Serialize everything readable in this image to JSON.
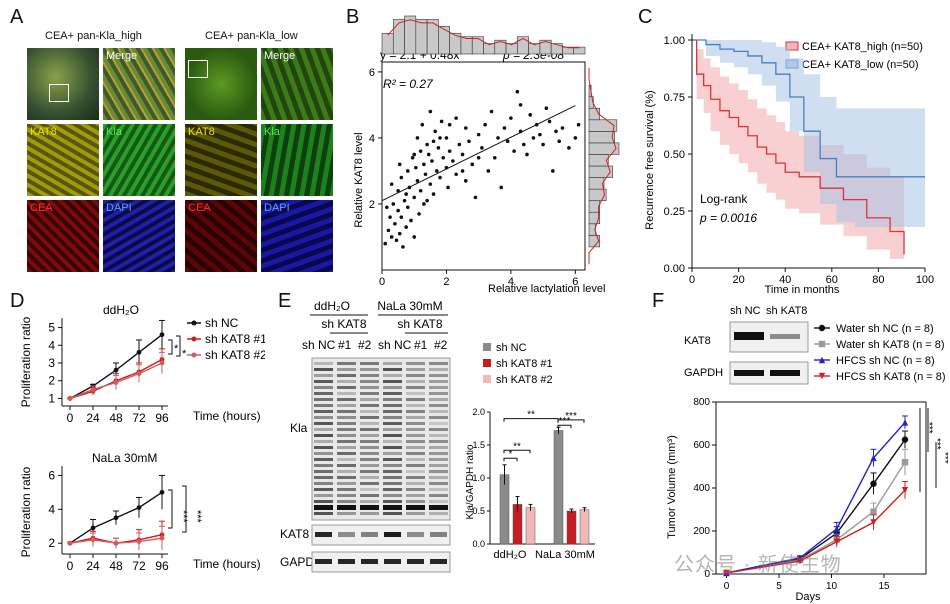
{
  "panels": {
    "A": {
      "letter": "A",
      "left_title": "CEA+ pan-Kla_high",
      "right_title": "CEA+ pan-Kla_low",
      "tiles": [
        "Merge",
        "KAT8",
        "Kla",
        "CEA",
        "DAPI"
      ],
      "colors": {
        "kat8": "#d8d000",
        "kla": "#2fbf2f",
        "cea": "#d01818",
        "dapi": "#3030e0"
      }
    },
    "B": {
      "letter": "B",
      "equation": "y = 2.1 + 0.48x",
      "pvalue": "p = 2.3e-08",
      "r2": "R² = 0.27",
      "xlabel": "Relative lactylation level",
      "ylabel": "Relative KAT8 level"
    },
    "C": {
      "letter": "C",
      "xlabel": "Time in months",
      "ylabel": "Recurrence free survival (%)",
      "test": "Log-rank",
      "pvalue": "p = 0.0016",
      "legend": [
        "CEA+ KAT8_high (n=50)",
        "CEA+ KAT8_low (n=50)"
      ]
    },
    "D": {
      "letter": "D",
      "top_title": "ddH₂O",
      "bottom_title": "NaLa 30mM",
      "xlabel": "Time (hours)",
      "ylabel": "Proliferation ratio",
      "legend": [
        "sh NC",
        "sh KAT8 #1",
        "sh KAT8 #2"
      ],
      "sig_top": [
        "*",
        "*"
      ],
      "sig_bottom": [
        "***",
        "***"
      ]
    },
    "E": {
      "letter": "E",
      "cond1": "ddH₂O",
      "cond2": "NaLa 30mM",
      "sh_kat8": "sh KAT8",
      "lanes": [
        "sh NC",
        "#1",
        "#2",
        "sh NC",
        "#1",
        "#2"
      ],
      "blots": [
        "Kla",
        "KAT8",
        "GAPDH"
      ],
      "legend": [
        "sh NC",
        "sh KAT8 #1",
        "sh KAT8 #2"
      ],
      "bar_ylabel": "Kla/GAPDH ratio",
      "bar_xlabels": [
        "ddH₂O",
        "NaLa 30mM"
      ],
      "sigs": [
        "*",
        "**",
        "**",
        "***",
        "***"
      ]
    },
    "F": {
      "letter": "F",
      "blot_lanes": [
        "sh NC",
        "sh KAT8"
      ],
      "blots": [
        "KAT8",
        "GAPDH"
      ],
      "legend": [
        "Water sh NC (n = 8)",
        "Water sh KAT8 (n = 8)",
        "HFCS sh NC (n = 8)",
        "HFCS sh KAT8 (n = 8)"
      ],
      "xlabel": "Days",
      "ylabel": "Tumor Volume (mm³)",
      "sigs": [
        "***",
        "***",
        "***"
      ]
    },
    "watermark": "公众号 · 新使生物"
  },
  "chart_data": [
    {
      "type": "scatter",
      "id": "B",
      "xlim": [
        0,
        6.3
      ],
      "ylim": [
        0,
        6.3
      ],
      "xticks": [
        0,
        2,
        4,
        6
      ],
      "yticks": [
        2,
        4,
        6
      ],
      "fit": {
        "intercept": 2.1,
        "slope": 0.48
      },
      "points": [
        [
          0.1,
          0.8
        ],
        [
          0.2,
          1.2
        ],
        [
          0.25,
          1.6
        ],
        [
          0.3,
          1.0
        ],
        [
          0.35,
          2.0
        ],
        [
          0.4,
          1.4
        ],
        [
          0.45,
          0.9
        ],
        [
          0.5,
          1.8
        ],
        [
          0.5,
          2.4
        ],
        [
          0.55,
          1.1
        ],
        [
          0.6,
          1.6
        ],
        [
          0.6,
          2.8
        ],
        [
          0.65,
          0.7
        ],
        [
          0.7,
          2.1
        ],
        [
          0.75,
          1.3
        ],
        [
          0.8,
          3.0
        ],
        [
          0.8,
          1.9
        ],
        [
          0.85,
          2.5
        ],
        [
          0.9,
          1.5
        ],
        [
          0.95,
          3.4
        ],
        [
          1.0,
          2.2
        ],
        [
          1.0,
          1.0
        ],
        [
          1.05,
          3.1
        ],
        [
          1.1,
          2.7
        ],
        [
          1.1,
          4.0
        ],
        [
          1.15,
          1.7
        ],
        [
          1.2,
          3.6
        ],
        [
          1.2,
          2.4
        ],
        [
          1.25,
          4.4
        ],
        [
          1.3,
          3.2
        ],
        [
          1.3,
          2.0
        ],
        [
          1.35,
          2.9
        ],
        [
          1.4,
          3.8
        ],
        [
          1.45,
          3.5
        ],
        [
          1.5,
          2.6
        ],
        [
          1.5,
          4.8
        ],
        [
          1.55,
          3.3
        ],
        [
          1.6,
          3.9
        ],
        [
          1.6,
          2.3
        ],
        [
          1.65,
          4.2
        ],
        [
          1.7,
          3.0
        ],
        [
          1.75,
          3.7
        ],
        [
          1.8,
          2.8
        ],
        [
          1.85,
          4.5
        ],
        [
          1.9,
          3.4
        ],
        [
          2.0,
          3.1
        ],
        [
          2.0,
          4.0
        ],
        [
          2.05,
          2.5
        ],
        [
          2.1,
          3.6
        ],
        [
          2.2,
          3.3
        ],
        [
          2.3,
          4.6
        ],
        [
          2.3,
          2.9
        ],
        [
          2.4,
          3.8
        ],
        [
          2.5,
          3.5
        ],
        [
          2.6,
          2.7
        ],
        [
          2.6,
          4.3
        ],
        [
          2.7,
          3.9
        ],
        [
          2.8,
          3.2
        ],
        [
          2.9,
          2.2
        ],
        [
          3.0,
          4.1
        ],
        [
          3.1,
          3.7
        ],
        [
          3.2,
          4.4
        ],
        [
          3.3,
          3.0
        ],
        [
          3.4,
          4.8
        ],
        [
          3.5,
          3.4
        ],
        [
          3.6,
          4.0
        ],
        [
          3.7,
          2.5
        ],
        [
          3.8,
          4.3
        ],
        [
          3.9,
          3.9
        ],
        [
          4.0,
          4.6
        ],
        [
          4.1,
          3.6
        ],
        [
          4.2,
          5.4
        ],
        [
          4.3,
          4.2
        ],
        [
          4.3,
          5.0
        ],
        [
          4.4,
          3.8
        ],
        [
          4.5,
          3.5
        ],
        [
          4.6,
          4.7
        ],
        [
          4.7,
          4.0
        ],
        [
          4.8,
          4.4
        ],
        [
          4.9,
          4.1
        ],
        [
          5.0,
          3.8
        ],
        [
          5.1,
          4.9
        ],
        [
          5.2,
          4.5
        ],
        [
          5.3,
          3.0
        ],
        [
          5.4,
          4.2
        ],
        [
          5.5,
          3.9
        ],
        [
          5.6,
          4.3
        ],
        [
          5.8,
          3.7
        ],
        [
          6.0,
          4.0
        ],
        [
          6.1,
          4.4
        ],
        [
          0.15,
          1.9
        ],
        [
          0.3,
          2.6
        ],
        [
          0.55,
          3.2
        ],
        [
          0.75,
          2.3
        ],
        [
          1.0,
          3.5
        ],
        [
          1.4,
          2.1
        ],
        [
          1.8,
          4.0
        ],
        [
          2.1,
          4.4
        ],
        [
          2.5,
          3.0
        ],
        [
          3.0,
          3.4
        ]
      ]
    },
    {
      "type": "line",
      "id": "C",
      "xlim": [
        0,
        100
      ],
      "ylim": [
        0,
        1.0
      ],
      "xticks": [
        0,
        20,
        40,
        60,
        80,
        100
      ],
      "yticks": [
        0.0,
        0.25,
        0.5,
        0.75,
        1.0
      ],
      "series": [
        {
          "name": "CEA+ KAT8_high (n=50)",
          "color": "#d9323a",
          "steps": [
            [
              0,
              1.0
            ],
            [
              2,
              0.85
            ],
            [
              5,
              0.8
            ],
            [
              8,
              0.74
            ],
            [
              12,
              0.69
            ],
            [
              16,
              0.66
            ],
            [
              20,
              0.62
            ],
            [
              24,
              0.58
            ],
            [
              28,
              0.53
            ],
            [
              32,
              0.5
            ],
            [
              36,
              0.46
            ],
            [
              40,
              0.42
            ],
            [
              46,
              0.4
            ],
            [
              55,
              0.35
            ],
            [
              65,
              0.3
            ],
            [
              75,
              0.22
            ],
            [
              85,
              0.16
            ],
            [
              91,
              0.06
            ]
          ],
          "upper": [
            [
              0,
              1.0
            ],
            [
              2,
              0.96
            ],
            [
              5,
              0.92
            ],
            [
              8,
              0.88
            ],
            [
              12,
              0.84
            ],
            [
              16,
              0.81
            ],
            [
              20,
              0.78
            ],
            [
              24,
              0.74
            ],
            [
              28,
              0.7
            ],
            [
              32,
              0.67
            ],
            [
              36,
              0.64
            ],
            [
              40,
              0.6
            ],
            [
              46,
              0.58
            ],
            [
              55,
              0.54
            ],
            [
              65,
              0.5
            ],
            [
              75,
              0.44
            ],
            [
              85,
              0.4
            ],
            [
              91,
              0.36
            ]
          ],
          "lower": [
            [
              0,
              1.0
            ],
            [
              2,
              0.74
            ],
            [
              5,
              0.68
            ],
            [
              8,
              0.6
            ],
            [
              12,
              0.54
            ],
            [
              16,
              0.5
            ],
            [
              20,
              0.46
            ],
            [
              24,
              0.42
            ],
            [
              28,
              0.37
            ],
            [
              32,
              0.33
            ],
            [
              36,
              0.3
            ],
            [
              40,
              0.26
            ],
            [
              46,
              0.24
            ],
            [
              55,
              0.19
            ],
            [
              65,
              0.14
            ],
            [
              75,
              0.08
            ],
            [
              85,
              0.04
            ],
            [
              91,
              0.01
            ]
          ]
        },
        {
          "name": "CEA+ KAT8_low (n=50)",
          "color": "#4a7fc4",
          "steps": [
            [
              0,
              1.0
            ],
            [
              6,
              0.98
            ],
            [
              12,
              0.96
            ],
            [
              18,
              0.95
            ],
            [
              24,
              0.93
            ],
            [
              30,
              0.9
            ],
            [
              36,
              0.85
            ],
            [
              42,
              0.75
            ],
            [
              48,
              0.6
            ],
            [
              55,
              0.48
            ],
            [
              62,
              0.4
            ],
            [
              70,
              0.4
            ],
            [
              80,
              0.4
            ],
            [
              100,
              0.4
            ]
          ],
          "upper": [
            [
              0,
              1.0
            ],
            [
              6,
              1.0
            ],
            [
              12,
              1.0
            ],
            [
              18,
              1.0
            ],
            [
              24,
              1.0
            ],
            [
              30,
              0.99
            ],
            [
              36,
              0.97
            ],
            [
              42,
              0.92
            ],
            [
              48,
              0.85
            ],
            [
              55,
              0.75
            ],
            [
              62,
              0.7
            ],
            [
              70,
              0.7
            ],
            [
              80,
              0.7
            ],
            [
              100,
              0.7
            ]
          ],
          "lower": [
            [
              0,
              1.0
            ],
            [
              6,
              0.93
            ],
            [
              12,
              0.9
            ],
            [
              18,
              0.88
            ],
            [
              24,
              0.85
            ],
            [
              30,
              0.8
            ],
            [
              36,
              0.73
            ],
            [
              42,
              0.6
            ],
            [
              48,
              0.42
            ],
            [
              55,
              0.28
            ],
            [
              62,
              0.2
            ],
            [
              70,
              0.18
            ],
            [
              80,
              0.18
            ],
            [
              100,
              0.18
            ]
          ]
        }
      ]
    },
    {
      "type": "line",
      "id": "D-top",
      "x": [
        0,
        24,
        48,
        72,
        96
      ],
      "ylim": [
        0.8,
        5.2
      ],
      "yticks": [
        1,
        2,
        3,
        4,
        5
      ],
      "series": [
        {
          "name": "sh NC",
          "color": "#111111",
          "values": [
            1.0,
            1.7,
            2.6,
            3.6,
            4.6
          ],
          "err": [
            0.05,
            0.1,
            0.4,
            0.7,
            0.8
          ]
        },
        {
          "name": "sh KAT8 #1",
          "color": "#c41e22",
          "values": [
            1.0,
            1.4,
            2.0,
            2.5,
            3.2
          ],
          "err": [
            0.05,
            0.2,
            0.4,
            0.5,
            0.6
          ]
        },
        {
          "name": "sh KAT8 #2",
          "color": "#d65a5a",
          "values": [
            1.0,
            1.5,
            1.9,
            2.4,
            3.0
          ],
          "err": [
            0.05,
            0.2,
            0.4,
            0.5,
            0.6
          ]
        }
      ]
    },
    {
      "type": "line",
      "id": "D-bottom",
      "x": [
        0,
        24,
        48,
        72,
        96
      ],
      "ylim": [
        1.6,
        6.2
      ],
      "yticks": [
        2,
        4,
        6
      ],
      "series": [
        {
          "name": "sh NC",
          "color": "#111111",
          "values": [
            2.0,
            2.9,
            3.5,
            4.1,
            5.0
          ],
          "err": [
            0.05,
            0.5,
            0.4,
            0.6,
            1.0
          ]
        },
        {
          "name": "sh KAT8 #1",
          "color": "#c41e22",
          "values": [
            2.0,
            2.3,
            2.0,
            2.2,
            2.5
          ],
          "err": [
            0.05,
            0.4,
            0.3,
            0.6,
            0.8
          ]
        },
        {
          "name": "sh KAT8 #2",
          "color": "#d65a5a",
          "values": [
            2.0,
            2.2,
            2.0,
            2.1,
            2.3
          ],
          "err": [
            0.05,
            0.4,
            0.3,
            0.5,
            0.7
          ]
        }
      ]
    },
    {
      "type": "bar",
      "id": "E-bar",
      "categories": [
        "ddH₂O",
        "NaLa 30mM"
      ],
      "ylim": [
        0,
        2.0
      ],
      "series": [
        {
          "name": "sh NC",
          "color": "#8a8a8a",
          "values": [
            1.05,
            1.72
          ],
          "err": [
            0.15,
            0.05
          ]
        },
        {
          "name": "sh KAT8 #1",
          "color": "#c41e22",
          "values": [
            0.6,
            0.5
          ],
          "err": [
            0.12,
            0.03
          ]
        },
        {
          "name": "sh KAT8 #2",
          "color": "#f2b8b8",
          "values": [
            0.55,
            0.52
          ],
          "err": [
            0.05,
            0.03
          ]
        }
      ]
    },
    {
      "type": "line",
      "id": "F",
      "x": [
        0,
        7,
        10.5,
        14,
        17
      ],
      "xlim": [
        -1,
        19
      ],
      "ylim": [
        0,
        800
      ],
      "xticks": [
        0,
        5,
        10,
        15
      ],
      "yticks": [
        0,
        200,
        400,
        600,
        800
      ],
      "series": [
        {
          "name": "Water sh NC (n = 8)",
          "color": "#111111",
          "marker": "circle",
          "values": [
            5,
            70,
            190,
            420,
            625
          ],
          "err": [
            2,
            10,
            30,
            50,
            40
          ]
        },
        {
          "name": "Water sh KAT8 (n = 8)",
          "color": "#9a9a9a",
          "marker": "square",
          "values": [
            5,
            65,
            160,
            290,
            520
          ],
          "err": [
            2,
            10,
            25,
            40,
            60
          ]
        },
        {
          "name": "HFCS sh NC (n = 8)",
          "color": "#2222cc",
          "marker": "triangle",
          "values": [
            5,
            75,
            210,
            540,
            705
          ],
          "err": [
            2,
            10,
            30,
            40,
            30
          ]
        },
        {
          "name": "HFCS sh KAT8 (n = 8)",
          "color": "#cc2222",
          "marker": "triangle-down",
          "values": [
            5,
            60,
            150,
            240,
            390
          ],
          "err": [
            2,
            10,
            25,
            35,
            40
          ]
        }
      ]
    }
  ]
}
